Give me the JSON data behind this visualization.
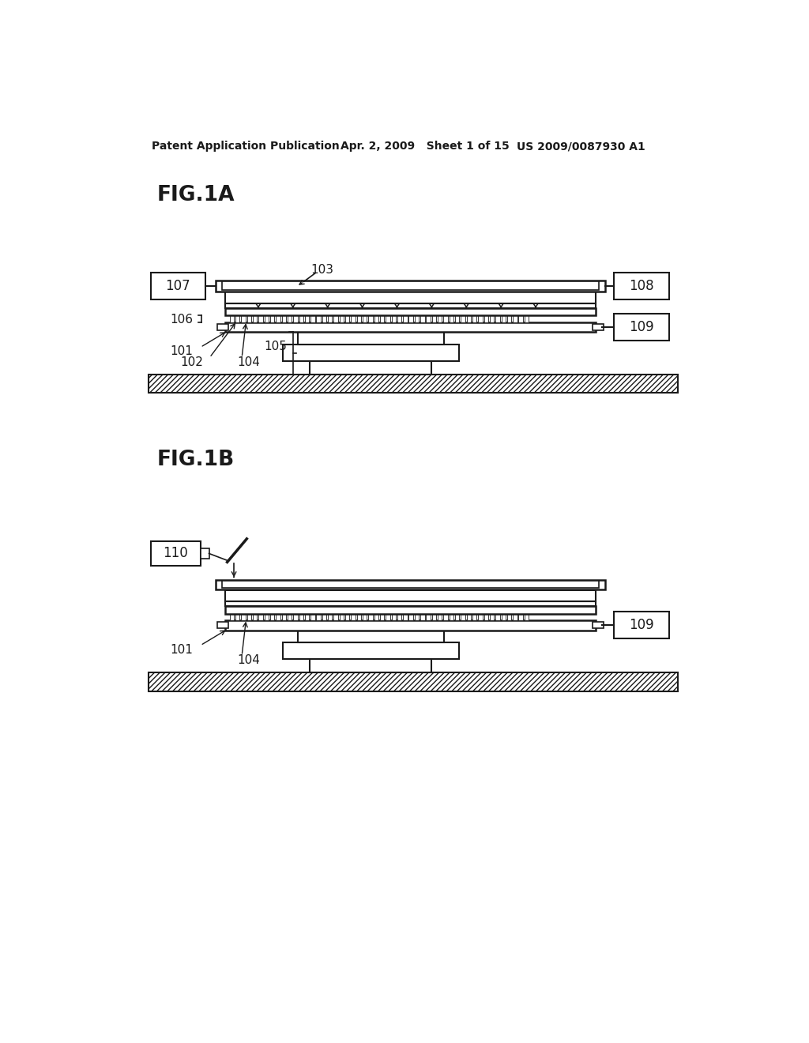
{
  "bg_color": "#ffffff",
  "header_left": "Patent Application Publication",
  "header_mid": "Apr. 2, 2009   Sheet 1 of 15",
  "header_right": "US 2009/0087930 A1",
  "fig1a_label": "FIG.1A",
  "fig1b_label": "FIG.1B",
  "line_color": "#1a1a1a"
}
